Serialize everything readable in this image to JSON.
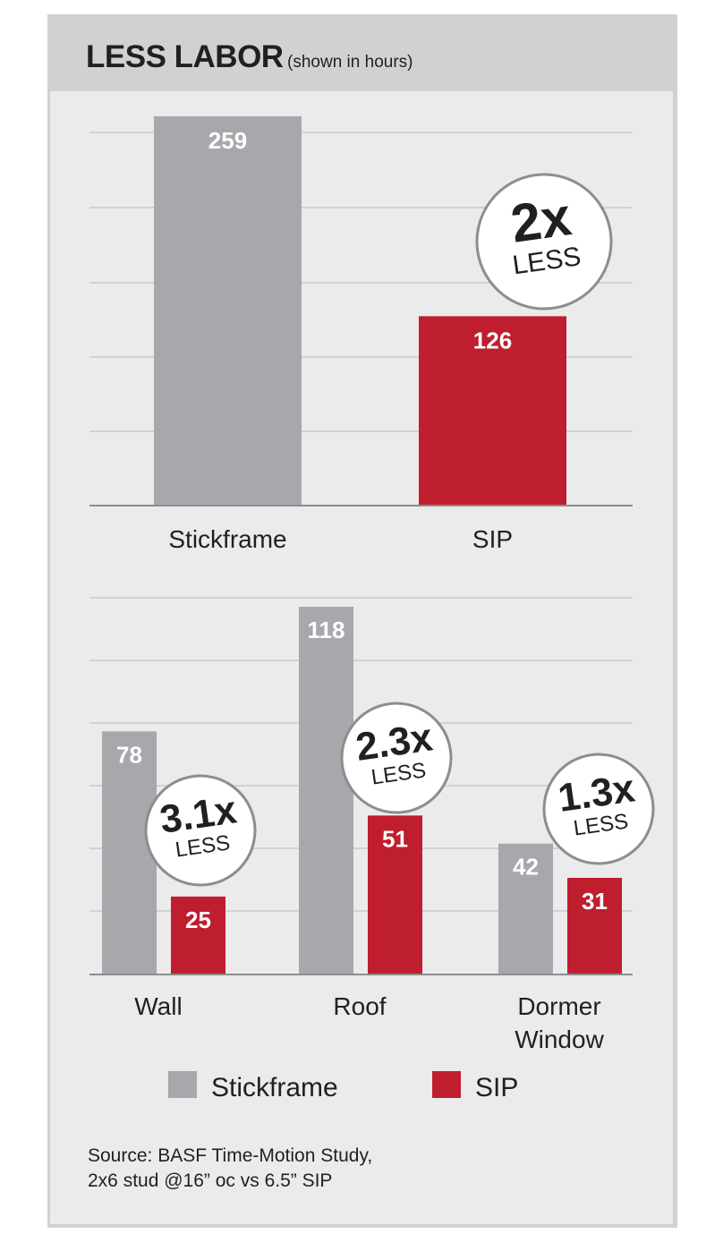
{
  "title": {
    "main": "LESS LABOR",
    "sub": "(shown in hours)"
  },
  "colors": {
    "stickframe": "#a6a8ab",
    "sip": "#bf1e2e",
    "grid": "#b8b9bb",
    "axis": "#8c8d90"
  },
  "chart_data": [
    {
      "type": "bar",
      "categories": [
        "Stickframe",
        "SIP"
      ],
      "values": [
        259,
        126
      ],
      "ylim": [
        0,
        259
      ],
      "grid": true,
      "annotations": [
        {
          "big": "2x",
          "small": "LESS"
        }
      ]
    },
    {
      "type": "bar",
      "categories": [
        "Wall",
        "Roof",
        "Dormer Window"
      ],
      "category_lines": [
        [
          "Wall"
        ],
        [
          "Roof"
        ],
        [
          "Dormer",
          "Window"
        ]
      ],
      "series": [
        {
          "name": "Stickframe",
          "values": [
            78,
            118,
            42
          ]
        },
        {
          "name": "SIP",
          "values": [
            25,
            51,
            31
          ]
        }
      ],
      "ylim": [
        0,
        118
      ],
      "grid": true,
      "annotations": [
        {
          "big": "3.1x",
          "small": "LESS"
        },
        {
          "big": "2.3x",
          "small": "LESS"
        },
        {
          "big": "1.3x",
          "small": "LESS"
        }
      ]
    }
  ],
  "legend": [
    {
      "label": "Stickframe",
      "color": "#a6a8ab"
    },
    {
      "label": "SIP",
      "color": "#bf1e2e"
    }
  ],
  "source": {
    "line1": "Source: BASF Time-Motion Study,",
    "line2": "2x6 stud @16” oc vs 6.5” SIP"
  }
}
